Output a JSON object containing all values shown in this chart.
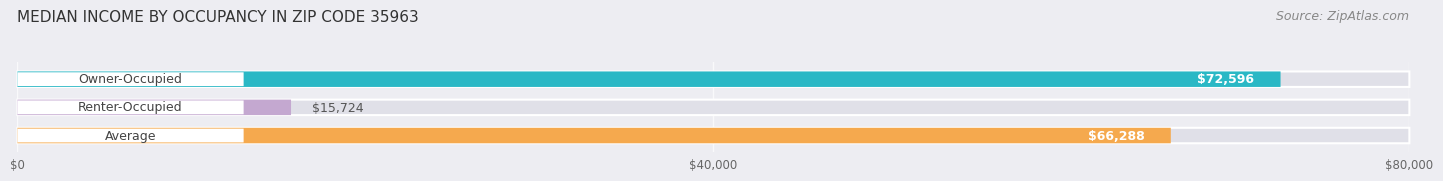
{
  "title": "MEDIAN INCOME BY OCCUPANCY IN ZIP CODE 35963",
  "source": "Source: ZipAtlas.com",
  "categories": [
    "Owner-Occupied",
    "Renter-Occupied",
    "Average"
  ],
  "values": [
    72596,
    15724,
    66288
  ],
  "bar_colors": [
    "#2ab8c5",
    "#c4a8d0",
    "#f5a94e"
  ],
  "xlim": [
    0,
    80000
  ],
  "xticks": [
    0,
    40000,
    80000
  ],
  "xtick_labels": [
    "$0",
    "$40,000",
    "$80,000"
  ],
  "value_labels": [
    "$72,596",
    "$15,724",
    "$66,288"
  ],
  "background_color": "#ededf2",
  "bar_background": "#e0e0e8",
  "title_fontsize": 11,
  "source_fontsize": 9,
  "bar_height": 0.55,
  "bar_label_fontsize": 9
}
